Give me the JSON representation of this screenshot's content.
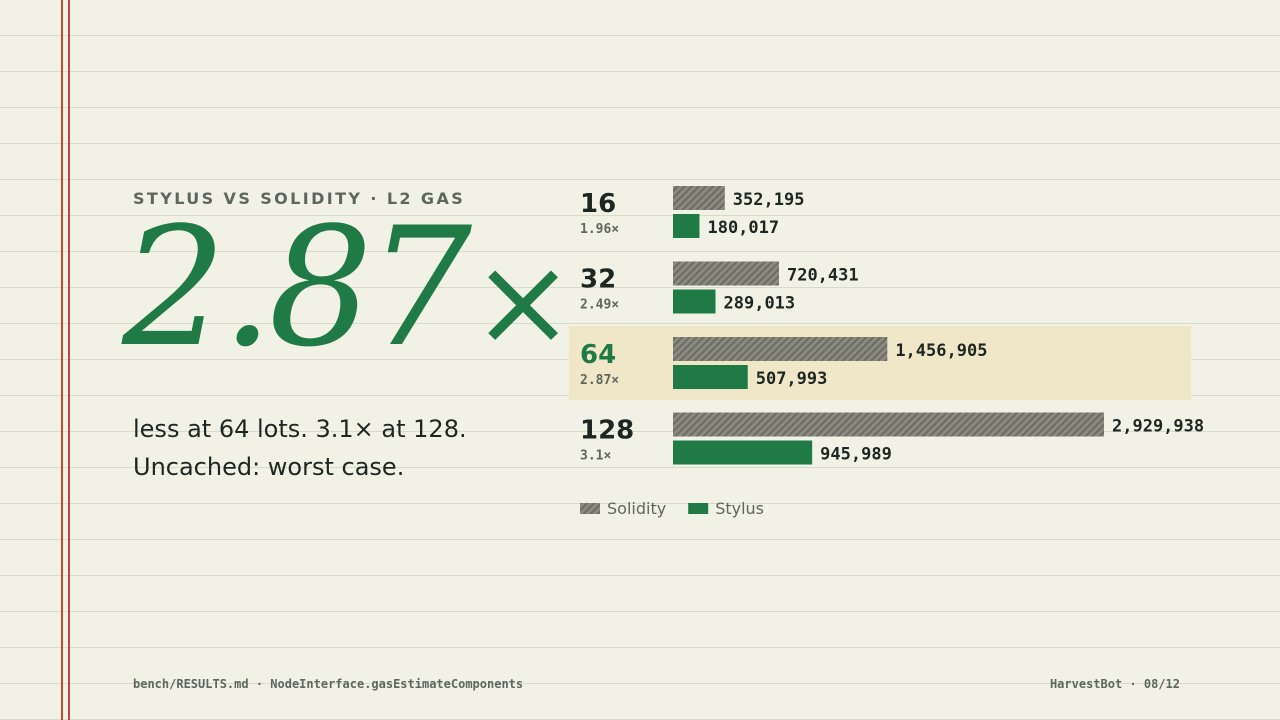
{
  "eyebrow": "STYLUS VS SOLIDITY · L2 GAS",
  "headline": {
    "value": "2.87",
    "suffix": "×"
  },
  "description": {
    "line1": "less at 64 lots. 3.1× at 128.",
    "line2": "Uncached: worst case."
  },
  "chart_data": {
    "type": "bar",
    "orientation": "horizontal",
    "categories": [
      "16",
      "32",
      "64",
      "128"
    ],
    "ratios": [
      "1.96×",
      "2.49×",
      "2.87×",
      "3.1×"
    ],
    "value_labels": [
      [
        "352,195",
        "720,431",
        "1,456,905",
        "2,929,938"
      ],
      [
        "180,017",
        "289,013",
        "507,993",
        "945,989"
      ]
    ],
    "series": [
      {
        "name": "Solidity",
        "values": [
          352195,
          720431,
          1456905,
          2929938
        ],
        "color": "#8a8a80",
        "pattern": "hatched"
      },
      {
        "name": "Stylus",
        "values": [
          180017,
          289013,
          507993,
          945989
        ],
        "color": "#1f7a45",
        "pattern": "solid"
      }
    ],
    "highlighted_category": "64",
    "highlight_color": "#f0e7c8",
    "xlim": [
      0,
      2929938
    ],
    "grid": false,
    "legend": "bottom-left"
  },
  "footer": {
    "left": "bench/RESULTS.md · NodeInterface.gasEstimateComponents",
    "right": "HarvestBot · 08/12"
  }
}
